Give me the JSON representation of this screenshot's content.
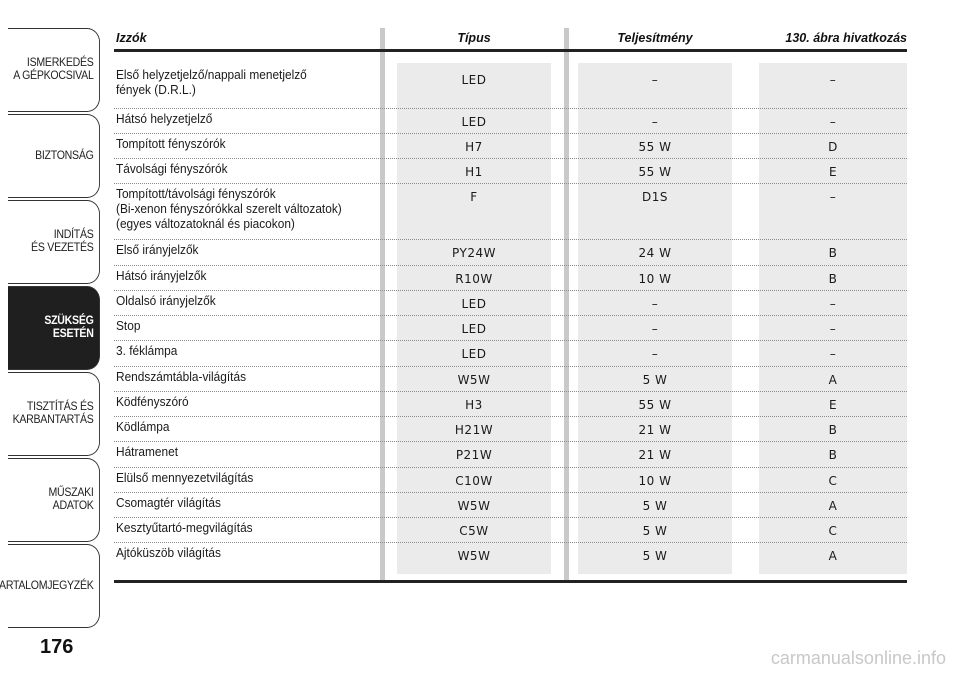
{
  "sidebar": {
    "tabs": [
      {
        "label": "ISMERKEDÉS\nA GÉPKOCSIVAL",
        "active": false
      },
      {
        "label": "BIZTONSÁG",
        "active": false
      },
      {
        "label": "INDÍTÁS\nÉS VEZETÉS",
        "active": false
      },
      {
        "label": "SZÜKSÉG\nESETÉN",
        "active": true
      },
      {
        "label": "TISZTÍTÁS ÉS\nKARBANTARTÁS",
        "active": false
      },
      {
        "label": "MŰSZAKI\nADATOK",
        "active": false
      },
      {
        "label": "TARTALOMJEGYZÉK",
        "active": false
      }
    ]
  },
  "page_number": "176",
  "table": {
    "headers": {
      "name": "Izzók",
      "tipus": "Típus",
      "teljesitmeny": "Teljesítmény",
      "ref": "130. ábra hivatkozás"
    },
    "rows": [
      {
        "name": "Első helyzetjelző/nappali menetjelző\nfények (D.R.L.)",
        "tipus": "LED",
        "telj": "–",
        "ref": "–"
      },
      {
        "name": "Hátsó helyzetjelző",
        "tipus": "LED",
        "telj": "–",
        "ref": "–"
      },
      {
        "name": "Tompított fényszórók",
        "tipus": "H7",
        "telj": "55 W",
        "ref": "D"
      },
      {
        "name": "Távolsági fényszórók",
        "tipus": "H1",
        "telj": "55 W",
        "ref": "E"
      },
      {
        "name": "Tompított/távolsági fényszórók\n(Bi-xenon fényszórókkal szerelt változatok)\n(egyes változatoknál és piacokon)",
        "tipus": "F",
        "telj": "D1S",
        "ref": "–"
      },
      {
        "name": "Első irányjelzők",
        "tipus": "PY24W",
        "telj": "24 W",
        "ref": "B"
      },
      {
        "name": "Hátsó irányjelzők",
        "tipus": "R10W",
        "telj": "10 W",
        "ref": "B"
      },
      {
        "name": "Oldalsó irányjelzők",
        "tipus": "LED",
        "telj": "–",
        "ref": "–"
      },
      {
        "name": "Stop",
        "tipus": "LED",
        "telj": "–",
        "ref": "–"
      },
      {
        "name": "3. féklámpa",
        "tipus": "LED",
        "telj": "–",
        "ref": "–"
      },
      {
        "name": "Rendszámtábla-világítás",
        "tipus": "W5W",
        "telj": "5 W",
        "ref": "A"
      },
      {
        "name": "Ködfényszóró",
        "tipus": "H3",
        "telj": "55 W",
        "ref": "E"
      },
      {
        "name": "Ködlámpa",
        "tipus": "H21W",
        "telj": "21 W",
        "ref": "B"
      },
      {
        "name": "Hátramenet",
        "tipus": "P21W",
        "telj": "21 W",
        "ref": "B"
      },
      {
        "name": "Elülső mennyezetvilágítás",
        "tipus": "C10W",
        "telj": "10 W",
        "ref": "C"
      },
      {
        "name": "Csomagtér világítás",
        "tipus": "W5W",
        "telj": "5 W",
        "ref": "A"
      },
      {
        "name": "Kesztyűtartó-megvilágítás",
        "tipus": "C5W",
        "telj": "5 W",
        "ref": "C"
      },
      {
        "name": "Ajtóküszöb világítás",
        "tipus": "W5W",
        "telj": "5 W",
        "ref": "A"
      }
    ]
  },
  "watermark": "carmanualsonline.info"
}
